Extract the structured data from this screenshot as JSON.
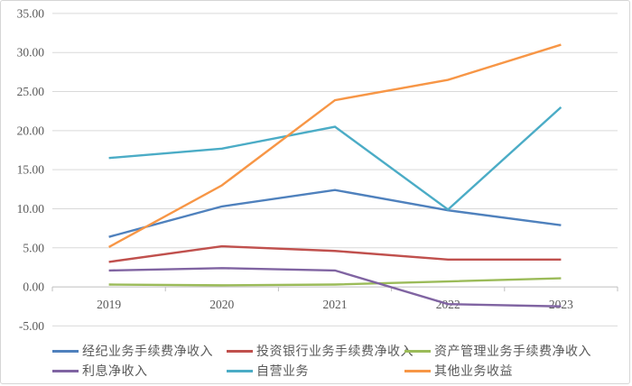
{
  "chart_data": {
    "type": "line",
    "categories": [
      "2019",
      "2020",
      "2021",
      "2022",
      "2023"
    ],
    "series": [
      {
        "name": "经纪业务手续费净收入",
        "color": "#4F81BD",
        "values": [
          6.4,
          10.3,
          12.4,
          9.8,
          7.9
        ]
      },
      {
        "name": "投资银行业务手续费净收入",
        "color": "#C0504D",
        "values": [
          3.2,
          5.2,
          4.6,
          3.5,
          3.5
        ]
      },
      {
        "name": "资产管理业务手续费净收入",
        "color": "#9BBB59",
        "values": [
          0.3,
          0.2,
          0.3,
          0.7,
          1.1
        ]
      },
      {
        "name": "利息净收入",
        "color": "#8064A2",
        "values": [
          2.1,
          2.4,
          2.1,
          -2.2,
          -2.5
        ]
      },
      {
        "name": "自营业务",
        "color": "#4BACC6",
        "values": [
          16.5,
          17.7,
          20.5,
          9.9,
          23.0
        ]
      },
      {
        "name": "其他业务收益",
        "color": "#F79646",
        "values": [
          5.1,
          13.0,
          23.9,
          26.5,
          31.0
        ]
      }
    ],
    "title": "",
    "xlabel": "",
    "ylabel": "",
    "ylim": [
      -5,
      35
    ],
    "y_tick_step": 5,
    "y_tick_labels": [
      "-5.00",
      "0.00",
      "5.00",
      "10.00",
      "15.00",
      "20.00",
      "25.00",
      "30.00",
      "35.00"
    ],
    "grid": true,
    "legend_position": "bottom"
  },
  "styles": {
    "grid_color": "#D9D9D9",
    "axis_color": "#BFBFBF",
    "label_color": "#595959",
    "background": "#FFFFFF"
  }
}
